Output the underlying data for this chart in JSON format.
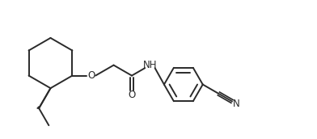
{
  "background_color": "#ffffff",
  "line_color": "#2a2a2a",
  "text_color": "#2a2a2a",
  "line_width": 1.4,
  "font_size": 8.5,
  "figsize": [
    3.92,
    1.72
  ],
  "dpi": 100,
  "xlim": [
    0.0,
    9.8
  ],
  "ylim": [
    0.5,
    4.2
  ]
}
